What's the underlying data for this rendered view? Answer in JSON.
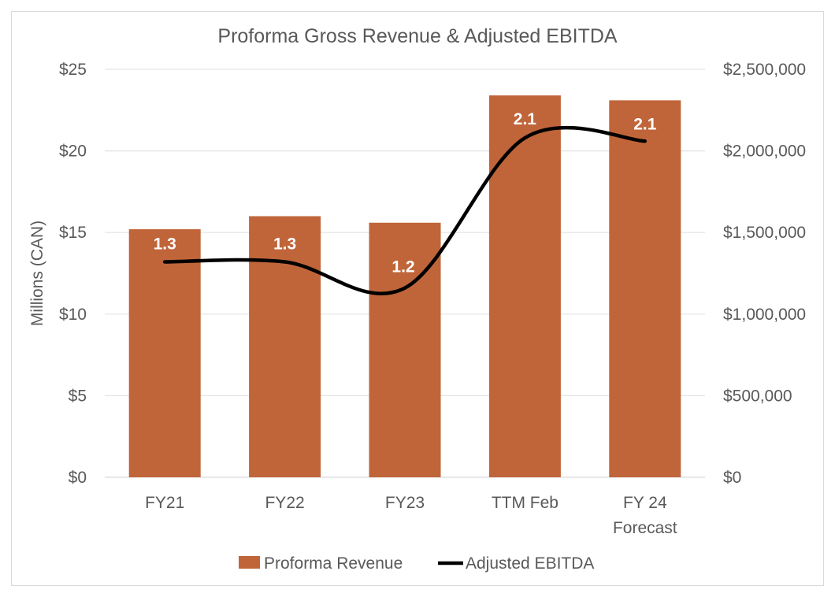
{
  "chart_data": {
    "type": "bar",
    "title": "Proforma Gross Revenue & Adjusted EBITDA",
    "ylabel": "Millions (CAN)",
    "y2label": "",
    "categories": [
      [
        "FY21"
      ],
      [
        "FY22"
      ],
      [
        "FY23"
      ],
      [
        "TTM Feb"
      ],
      [
        "FY 24",
        "Forecast"
      ]
    ],
    "ylim": [
      0,
      25
    ],
    "y_ticks": [
      "$0",
      "$5",
      "$10",
      "$15",
      "$20",
      "$25"
    ],
    "y2lim": [
      0,
      2500000
    ],
    "y2_ticks": [
      "$0",
      "$500,000",
      "$1,000,000",
      "$1,500,000",
      "$2,000,000",
      "$2,500,000"
    ],
    "grid": true,
    "legend_position": "bottom",
    "series": [
      {
        "name": "Proforma Revenue",
        "type": "bar",
        "axis": "left",
        "color": "#C0653A",
        "values": [
          15.2,
          16.0,
          15.6,
          23.4,
          23.1
        ]
      },
      {
        "name": "Adjusted EBITDA",
        "type": "line",
        "axis": "right",
        "color": "#000000",
        "smooth": true,
        "values": [
          1320000,
          1320000,
          1160000,
          2080000,
          2060000
        ],
        "data_labels": [
          "1.3",
          "1.3",
          "1.2",
          "2.1",
          "2.1"
        ]
      }
    ]
  }
}
